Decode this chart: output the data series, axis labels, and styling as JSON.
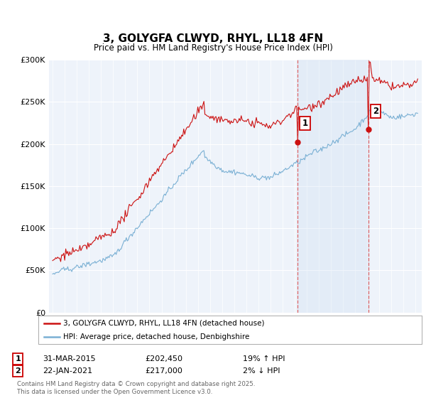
{
  "title": "3, GOLYGFA CLWYD, RHYL, LL18 4FN",
  "subtitle": "Price paid vs. HM Land Registry's House Price Index (HPI)",
  "ylim": [
    0,
    300000
  ],
  "yticks": [
    0,
    50000,
    100000,
    150000,
    200000,
    250000,
    300000
  ],
  "ytick_labels": [
    "£0",
    "£50K",
    "£100K",
    "£150K",
    "£200K",
    "£250K",
    "£300K"
  ],
  "bg_color": "#eef3fa",
  "red_color": "#cc1111",
  "blue_color": "#7ab0d4",
  "shade_color": "#ddeeff",
  "legend_line1": "3, GOLYGFA CLWYD, RHYL, LL18 4FN (detached house)",
  "legend_line2": "HPI: Average price, detached house, Denbighshire",
  "footer": "Contains HM Land Registry data © Crown copyright and database right 2025.\nThis data is licensed under the Open Government Licence v3.0.",
  "sale_points": [
    {
      "date": 2015.25,
      "price": 202450,
      "label": "1"
    },
    {
      "date": 2021.08,
      "price": 217000,
      "label": "2"
    }
  ]
}
